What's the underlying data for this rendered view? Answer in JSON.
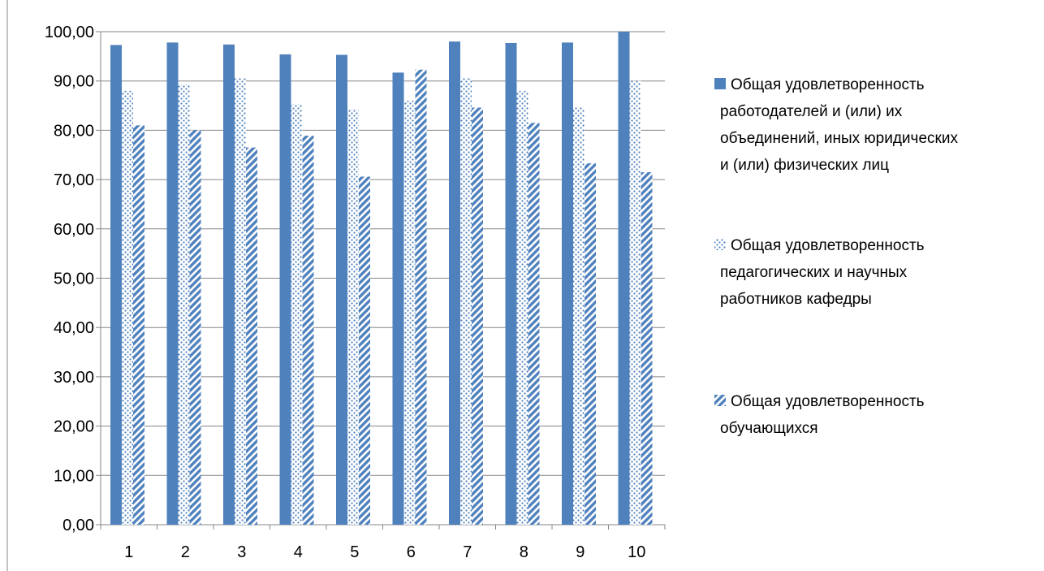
{
  "chart_data": {
    "type": "bar",
    "title": "",
    "xlabel": "",
    "ylabel": "",
    "ylim": [
      0,
      100
    ],
    "y_step": 10,
    "y_tick_labels": [
      "0,00",
      "10,00",
      "20,00",
      "30,00",
      "40,00",
      "50,00",
      "60,00",
      "70,00",
      "80,00",
      "90,00",
      "100,00"
    ],
    "categories": [
      "1",
      "2",
      "3",
      "4",
      "5",
      "6",
      "7",
      "8",
      "9",
      "10"
    ],
    "grid": "horizontal",
    "legend_position": "right",
    "series": [
      {
        "name": "Общая удовлетворенность работодателей и (или) их объединений, иных юридических и (или) физических лиц",
        "name_lines": [
          "Общая удовлетворенность",
          "работодателей и (или) их",
          "объединений, иных юридических",
          "и (или) физических лиц"
        ],
        "pattern": "solid",
        "color": "#4f81bd",
        "values": [
          97.3,
          97.8,
          97.4,
          95.4,
          95.3,
          91.7,
          98.0,
          97.7,
          97.8,
          100.0
        ]
      },
      {
        "name": "Общая удовлетворенность педагогических и научных работников кафедры",
        "name_lines": [
          "Общая удовлетворенность",
          "педагогических и научных",
          "работников кафедры"
        ],
        "pattern": "dots",
        "color": "#4f81bd",
        "values": [
          88.0,
          89.3,
          90.6,
          85.3,
          84.3,
          86.0,
          90.7,
          88.0,
          84.7,
          90.0
        ]
      },
      {
        "name": "Общая удовлетворенность обучающихся",
        "name_lines": [
          "Общая удовлетворенность",
          "обучающихся"
        ],
        "pattern": "diagonal",
        "color": "#4f81bd",
        "values": [
          81.0,
          80.0,
          76.5,
          78.9,
          70.6,
          92.3,
          84.6,
          81.5,
          73.3,
          71.5
        ]
      }
    ]
  }
}
